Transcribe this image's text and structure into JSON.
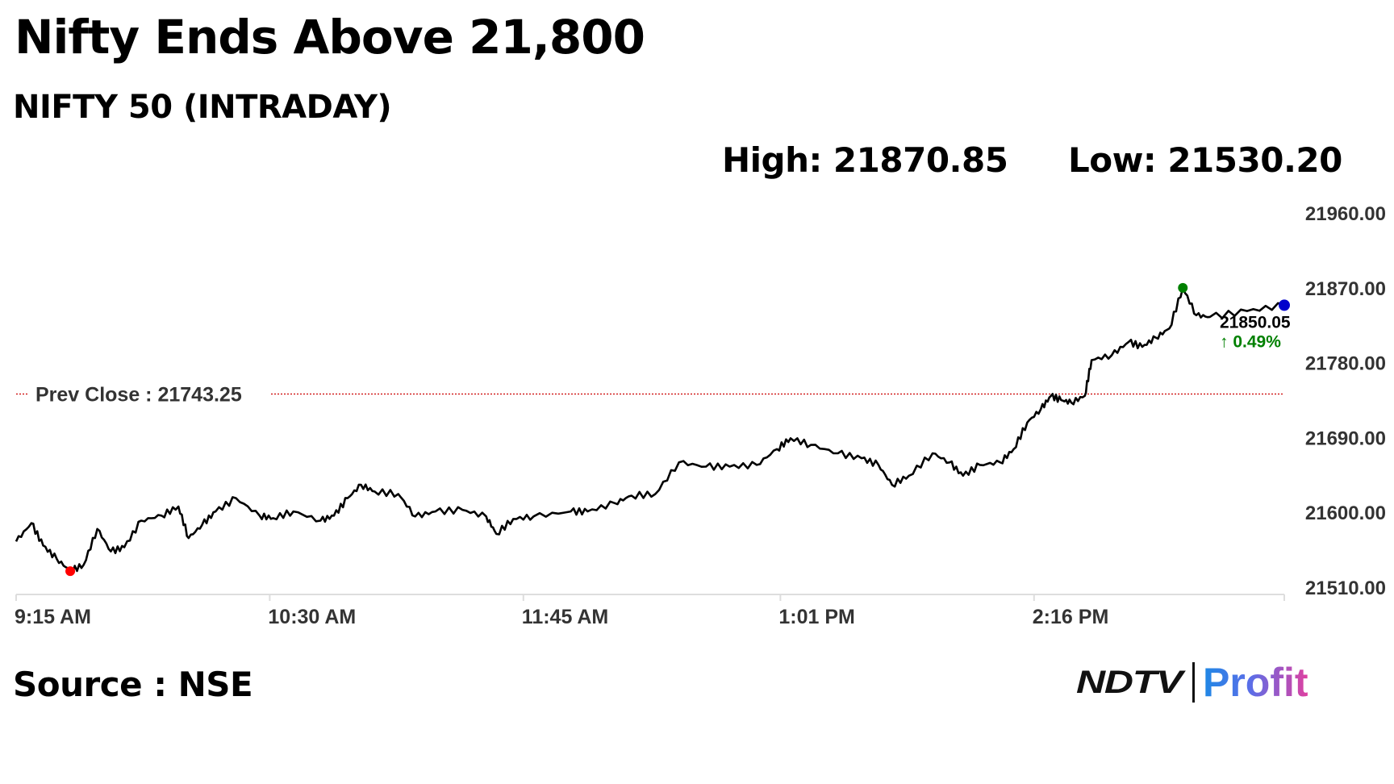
{
  "header": {
    "title": "Nifty Ends Above 21,800",
    "subtitle": "NIFTY 50 (INTRADAY)",
    "high_label": "High: 21870.85",
    "low_label": "Low: 21530.20"
  },
  "footer": {
    "source": "Source : NSE",
    "logo_ndtv": "NDTV",
    "logo_profit": "Profit"
  },
  "chart_data": {
    "type": "line",
    "title": "NIFTY 50 (INTRADAY)",
    "xlabel": "",
    "ylabel": "",
    "ylim": [
      21510,
      21960
    ],
    "xlim_minutes_since_open": [
      0,
      375
    ],
    "y_ticks": [
      "21960.00",
      "21870.00",
      "21780.00",
      "21690.00",
      "21600.00",
      "21510.00"
    ],
    "y_tick_values": [
      21960,
      21870,
      21780,
      21690,
      21600,
      21510
    ],
    "x_ticks": [
      {
        "label": "9:15 AM",
        "minute": 0
      },
      {
        "label": "10:30 AM",
        "minute": 75
      },
      {
        "label": "11:45 AM",
        "minute": 150
      },
      {
        "label": "1:01 PM",
        "minute": 226
      },
      {
        "label": "2:16 PM",
        "minute": 301
      }
    ],
    "prev_close": {
      "value": 21743.25,
      "label": "Prev Close : 21743.25",
      "color": "#cc0000"
    },
    "high_point": {
      "minute": 345,
      "value": 21870.85,
      "color": "#008000"
    },
    "low_point": {
      "minute": 16,
      "value": 21530.2,
      "color": "#ff0000"
    },
    "last_point": {
      "minute": 375,
      "value": 21850.05,
      "label": "21850.05",
      "change": "↑ 0.49%",
      "color": "#0000cc",
      "change_color": "#008000"
    },
    "series": [
      {
        "name": "NIFTY 50",
        "color": "#000000",
        "minutes": [
          0,
          4.5,
          8,
          12,
          16,
          20,
          24,
          28,
          32,
          37,
          43,
          48,
          51,
          55,
          59,
          65,
          72,
          76,
          82,
          90,
          94,
          98,
          102,
          106,
          113,
          118,
          124,
          132,
          139,
          142,
          147,
          153,
          164,
          169,
          177,
          182,
          189,
          196,
          204,
          211,
          219,
          225,
          229,
          235,
          243,
          250,
          255,
          259,
          264,
          271,
          276,
          280,
          285,
          291,
          295,
          299,
          303,
          306,
          309,
          312,
          316,
          318,
          324,
          329,
          333,
          337,
          341,
          345,
          349,
          353,
          364,
          375
        ],
        "values": [
          21566,
          21588,
          21561,
          21545,
          21530.2,
          21538,
          21581,
          21554,
          21559,
          21591,
          21597,
          21608,
          21570,
          21586,
          21602,
          21618,
          21597,
          21594,
          21602,
          21591,
          21597,
          21618,
          21634,
          21626,
          21623,
          21596,
          21602,
          21604,
          21596,
          21575,
          21593,
          21596,
          21602,
          21602,
          21612,
          21621,
          21623,
          21661,
          21656,
          21656,
          21658,
          21677,
          21690,
          21682,
          21672,
          21666,
          21658,
          21634,
          21645,
          21672,
          21661,
          21645,
          21658,
          21661,
          21677,
          21709,
          21725,
          21741,
          21736,
          21733,
          21741,
          21784,
          21790,
          21806,
          21800,
          21811,
          21822,
          21870.85,
          21838,
          21836,
          21843,
          21850.05
        ]
      }
    ]
  }
}
